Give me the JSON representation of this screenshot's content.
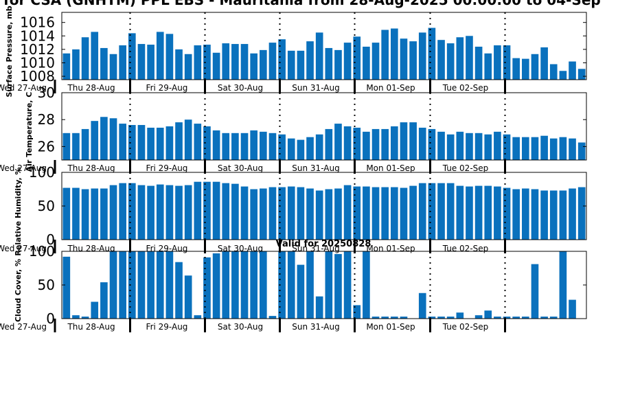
{
  "page_title": "for CSA (GNHTM) PPL EBS - Mauritania from 28-Aug-2025 00:00:00 to 04-Sep",
  "subtitle": "Valid for 20250828",
  "colors": {
    "bar": "#0a71bd",
    "axis": "#000000"
  },
  "chart_data": [
    {
      "type": "bar",
      "ylabel": "Surface Pressure, mb",
      "ylim": [
        1007.5,
        1017.5
      ],
      "yticks": [
        1008,
        1010,
        1012,
        1014,
        1016
      ],
      "values": [
        1011.4,
        1012.0,
        1013.8,
        1014.6,
        1012.2,
        1011.3,
        1012.6,
        1014.4,
        1012.8,
        1012.7,
        1014.6,
        1014.3,
        1012.0,
        1011.3,
        1012.6,
        1012.7,
        1011.5,
        1012.9,
        1012.8,
        1012.8,
        1011.4,
        1011.9,
        1013.0,
        1013.5,
        1011.8,
        1011.8,
        1013.2,
        1014.5,
        1012.2,
        1011.9,
        1013.0,
        1013.9,
        1012.4,
        1013.0,
        1014.9,
        1015.1,
        1013.6,
        1013.2,
        1014.5,
        1015.2,
        1013.4,
        1012.9,
        1013.8,
        1014.0,
        1012.4,
        1011.4,
        1012.6,
        1012.6,
        1010.7,
        1010.6,
        1011.3,
        1012.3,
        1009.8,
        1008.8,
        1010.2,
        1009.1
      ]
    },
    {
      "type": "bar",
      "ylabel": "Air Temperature, C",
      "ylim": [
        25,
        30
      ],
      "yticks": [
        26,
        28,
        30
      ],
      "values": [
        27.0,
        27.0,
        27.3,
        27.9,
        28.2,
        28.1,
        27.7,
        27.6,
        27.6,
        27.4,
        27.4,
        27.5,
        27.8,
        28.0,
        27.7,
        27.5,
        27.2,
        27.0,
        27.0,
        27.0,
        27.2,
        27.1,
        27.0,
        26.9,
        26.6,
        26.5,
        26.7,
        26.9,
        27.3,
        27.7,
        27.5,
        27.4,
        27.1,
        27.3,
        27.3,
        27.5,
        27.8,
        27.8,
        27.4,
        27.3,
        27.1,
        26.9,
        27.1,
        27.0,
        27.0,
        26.9,
        27.1,
        26.9,
        26.7,
        26.7,
        26.7,
        26.8,
        26.6,
        26.7,
        26.6,
        26.3
      ]
    },
    {
      "type": "bar",
      "ylabel": "Relative Humidity, %",
      "ylim": [
        0,
        100
      ],
      "yticks": [
        0,
        50,
        100
      ],
      "values": [
        77,
        77,
        75,
        76,
        76,
        81,
        84,
        84,
        81,
        80,
        82,
        81,
        80,
        81,
        86,
        86,
        86,
        84,
        83,
        79,
        75,
        76,
        78,
        78,
        79,
        78,
        76,
        73,
        75,
        76,
        81,
        79,
        79,
        78,
        78,
        78,
        77,
        80,
        84,
        84,
        84,
        84,
        80,
        79,
        80,
        80,
        79,
        77,
        75,
        76,
        75,
        73,
        73,
        73,
        76,
        78
      ]
    },
    {
      "type": "bar",
      "ylabel": "Cloud Cover, %",
      "ylim": [
        0,
        100
      ],
      "yticks": [
        0,
        50,
        100
      ],
      "values": [
        92,
        5,
        3,
        25,
        54,
        100,
        100,
        100,
        100,
        100,
        100,
        100,
        84,
        64,
        5,
        91,
        97,
        100,
        100,
        100,
        100,
        100,
        4,
        100,
        100,
        80,
        100,
        33,
        100,
        96,
        100,
        20,
        100,
        3,
        3,
        3,
        3,
        0,
        38,
        3,
        3,
        3,
        9,
        0,
        5,
        12,
        3,
        3,
        3,
        3,
        81,
        3,
        3,
        100,
        28,
        0
      ]
    }
  ],
  "x_axis": {
    "first_label": "Wed 27-Aug",
    "day_labels": [
      "Thu 28-Aug",
      "Fri 29-Aug",
      "Sat 30-Aug",
      "Sun 31-Aug",
      "Mon 01-Sep",
      "Tue 02-Sep"
    ]
  }
}
